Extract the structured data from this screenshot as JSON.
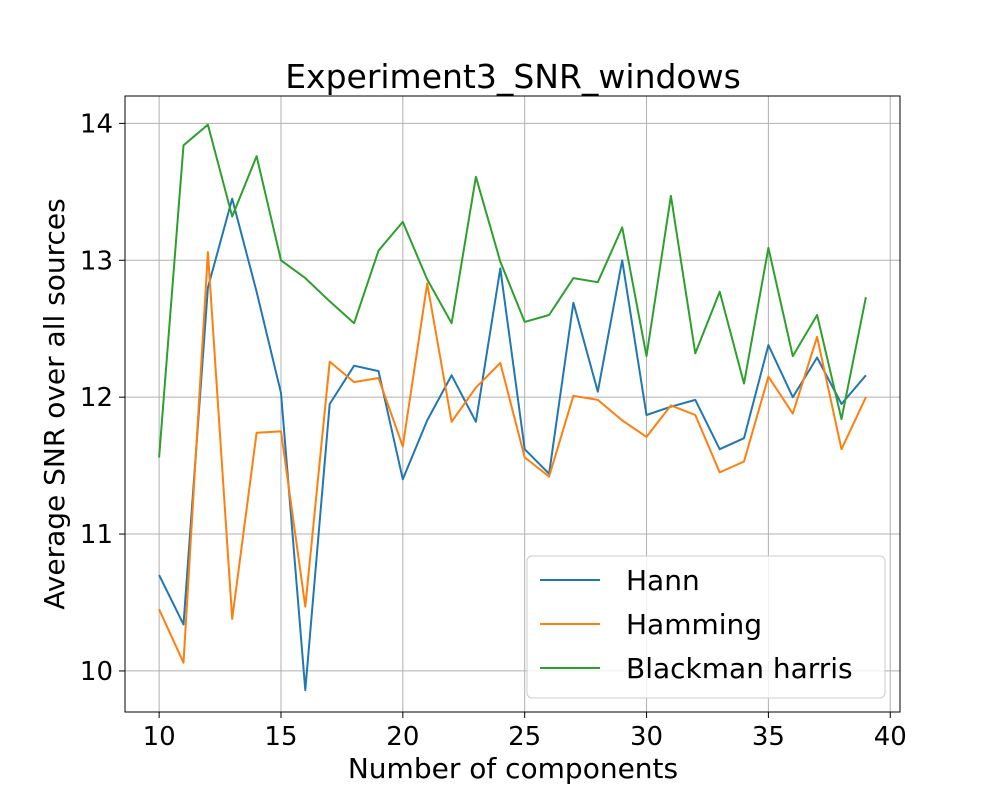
{
  "chart_data": {
    "type": "line",
    "title": "Experiment3_SNR_windows",
    "xlabel": "Number of components",
    "ylabel": "Average SNR over all sources",
    "xlim": [
      8.6,
      40.4
    ],
    "ylim": [
      9.7,
      14.2
    ],
    "xticks": [
      10,
      15,
      20,
      25,
      30,
      35,
      40
    ],
    "yticks": [
      10,
      11,
      12,
      13,
      14
    ],
    "grid": true,
    "legend_position": "lower-right",
    "x": [
      10,
      11,
      12,
      13,
      14,
      15,
      16,
      17,
      18,
      19,
      20,
      21,
      22,
      23,
      24,
      25,
      26,
      27,
      28,
      29,
      30,
      31,
      32,
      33,
      34,
      35,
      36,
      37,
      38,
      39
    ],
    "series": [
      {
        "name": "Hann",
        "color": "#1f77b4",
        "values": [
          10.7,
          10.34,
          12.8,
          13.45,
          12.77,
          12.03,
          9.86,
          11.95,
          12.23,
          12.19,
          11.4,
          11.83,
          12.16,
          11.82,
          12.94,
          11.62,
          11.44,
          12.69,
          12.04,
          13.0,
          11.87,
          11.93,
          11.98,
          11.62,
          11.7,
          12.38,
          12.0,
          12.29,
          11.95,
          12.16
        ]
      },
      {
        "name": "Hamming",
        "color": "#ff7f0e",
        "values": [
          10.45,
          10.06,
          13.06,
          10.38,
          11.74,
          11.75,
          10.47,
          12.26,
          12.11,
          12.14,
          11.64,
          12.83,
          11.82,
          12.07,
          12.25,
          11.56,
          11.42,
          12.01,
          11.98,
          11.83,
          11.71,
          11.94,
          11.87,
          11.45,
          11.53,
          12.15,
          11.88,
          12.44,
          11.62,
          12.0
        ]
      },
      {
        "name": "Blackman harris",
        "color": "#2ca02c",
        "values": [
          11.56,
          13.84,
          13.99,
          13.32,
          13.76,
          13.0,
          12.87,
          12.7,
          12.54,
          13.07,
          13.28,
          12.86,
          12.54,
          13.61,
          12.99,
          12.55,
          12.6,
          12.87,
          12.84,
          13.24,
          12.3,
          13.47,
          12.32,
          12.77,
          12.1,
          13.09,
          12.3,
          12.6,
          11.84,
          12.73
        ]
      }
    ]
  }
}
